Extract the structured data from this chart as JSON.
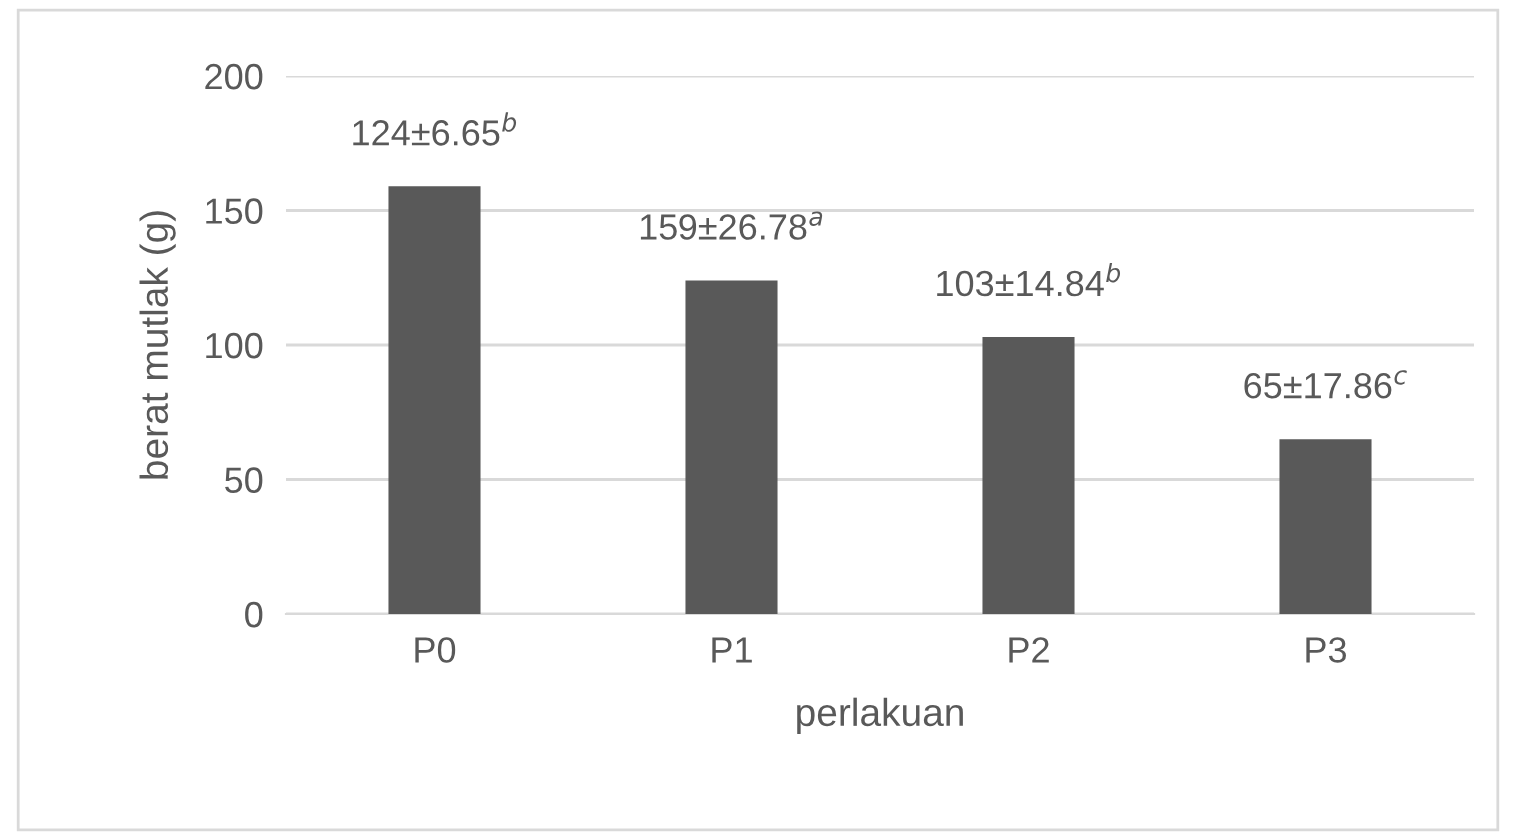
{
  "chart_data": {
    "type": "bar",
    "xlabel": "perlakuan",
    "ylabel": "berat mutlak (g)",
    "categories": [
      "P0",
      "P1",
      "P2",
      "P3"
    ],
    "values": [
      159,
      124,
      103,
      65
    ],
    "annotations": [
      {
        "text": "124±6.65$^{b}$",
        "x": "P0",
        "y": 159
      },
      {
        "text": "159±26.78$^{a}$",
        "x": "P1",
        "y": 124
      },
      {
        "text": "103±14.84$^{b}$",
        "x": "P2",
        "y": 103
      },
      {
        "text": "65±17.86$^{c}$",
        "x": "P3",
        "y": 65
      }
    ],
    "color": "#595959",
    "ylim": [
      0,
      200
    ],
    "yticks": [
      0,
      50,
      100,
      150,
      200
    ],
    "grid": "y"
  }
}
